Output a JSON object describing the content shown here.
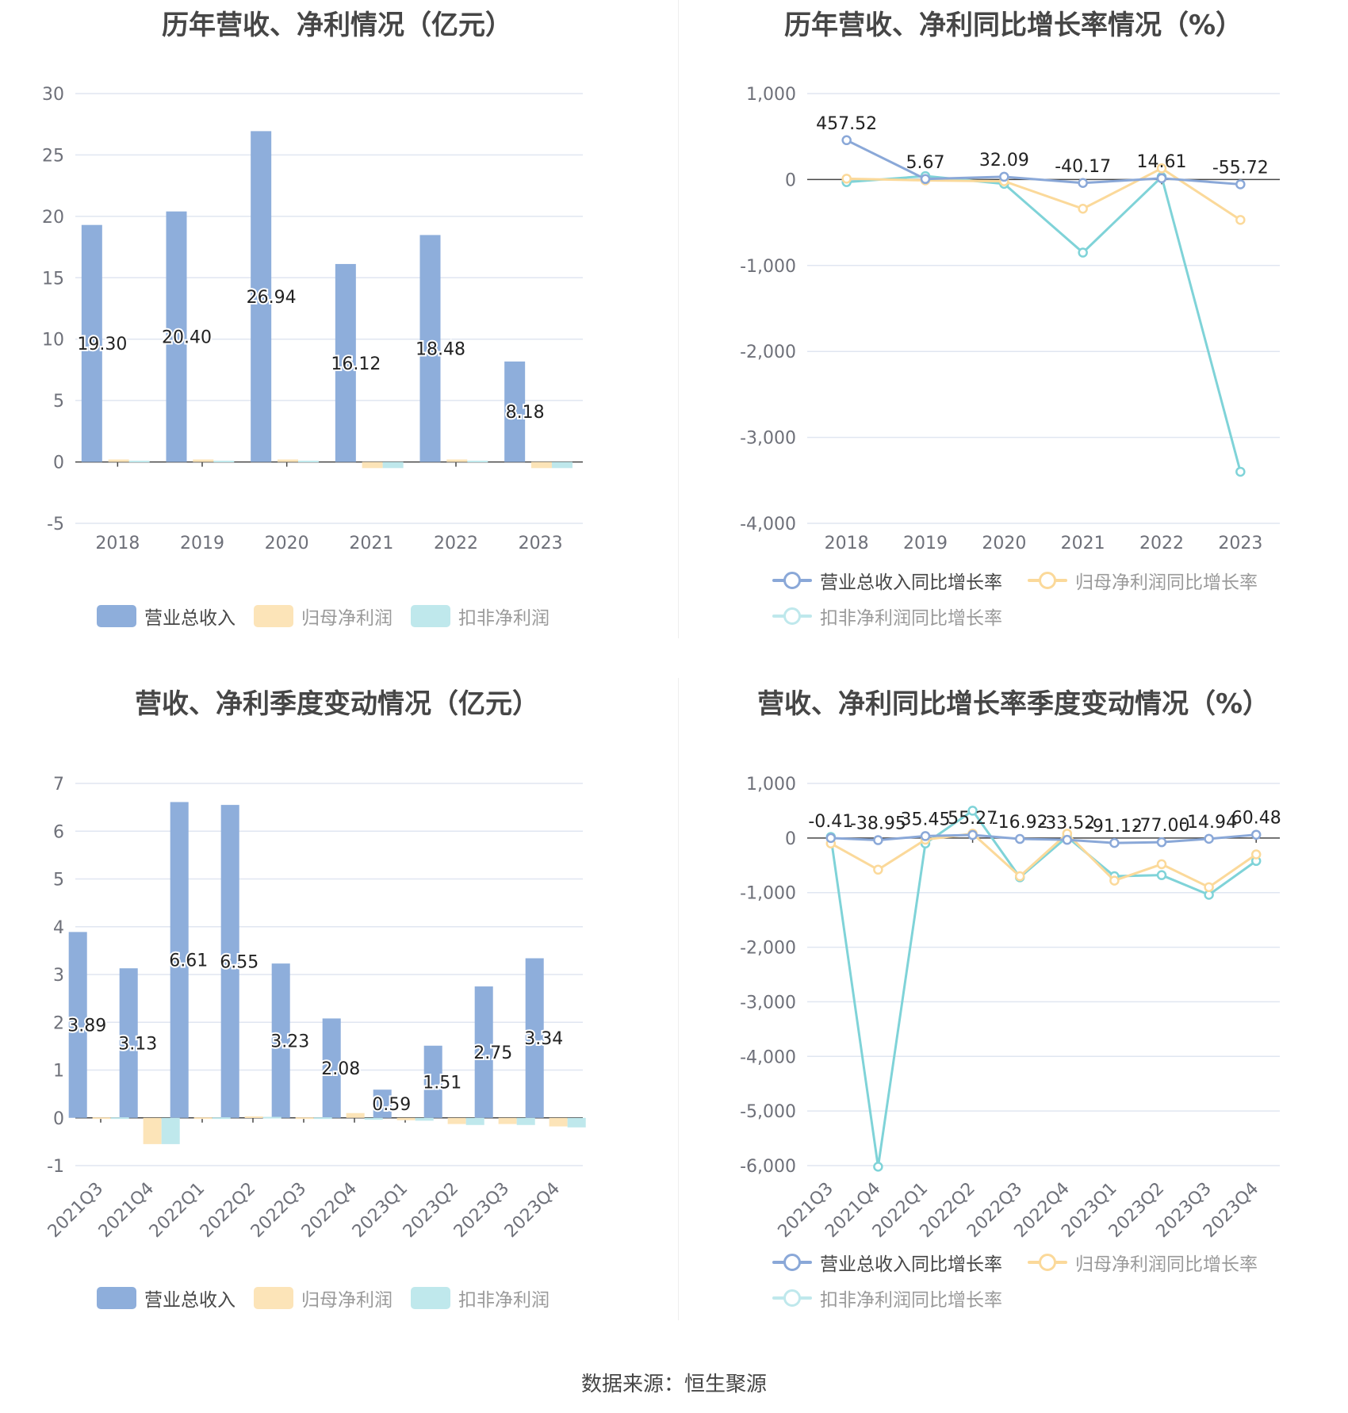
{
  "colors": {
    "revenue": "#8eaedb",
    "net_profit": "#fce4b8",
    "deducted_profit": "#bfe8ec",
    "revenue_line": "#8aa8d8",
    "net_line": "#fbd99a",
    "deducted_line": "#7fd3d8"
  },
  "source": {
    "label": "数据来源：",
    "name": "恒生聚源"
  },
  "chart_data": [
    {
      "id": "annual",
      "type": "bar",
      "title": "历年营收、净利情况（亿元）",
      "categories": [
        "2018",
        "2019",
        "2020",
        "2021",
        "2022",
        "2023"
      ],
      "ylim": [
        -5,
        30
      ],
      "yticks": [
        30,
        25,
        20,
        15,
        10,
        5,
        0,
        -5
      ],
      "ytick_labels": [
        "30",
        "25",
        "20",
        "15",
        "10",
        "5",
        "0",
        "-5"
      ],
      "grid": true,
      "legend_position": "bottom",
      "series": [
        {
          "name": "营业总收入",
          "values": [
            19.3,
            20.4,
            26.94,
            16.12,
            18.48,
            8.18
          ],
          "labels": [
            "19.30",
            "20.40",
            "26.94",
            "16.12",
            "18.48",
            "8.18"
          ]
        },
        {
          "name": "归母净利润",
          "values": [
            0.2,
            0.2,
            0.2,
            -0.5,
            0.2,
            -0.5
          ]
        },
        {
          "name": "扣非净利润",
          "values": [
            0.1,
            0.1,
            0.1,
            -0.5,
            0.1,
            -0.5
          ]
        }
      ]
    },
    {
      "id": "annual_growth",
      "type": "line",
      "title": "历年营收、净利同比增长率情况（%）",
      "categories": [
        "2018",
        "2019",
        "2020",
        "2021",
        "2022",
        "2023"
      ],
      "ylim": [
        -4000,
        1000
      ],
      "yticks": [
        1000,
        0,
        -1000,
        -2000,
        -3000,
        -4000
      ],
      "ytick_labels": [
        "1,000",
        "0",
        "-1,000",
        "-2,000",
        "-3,000",
        "-4,000"
      ],
      "grid": true,
      "legend_position": "bottom",
      "series": [
        {
          "name": "营业总收入同比增长率",
          "values": [
            457.52,
            5.67,
            32.09,
            -40.17,
            14.61,
            -55.72
          ],
          "labels": [
            "457.52",
            "5.67",
            "32.09",
            "-40.17",
            "14.61",
            "-55.72"
          ]
        },
        {
          "name": "归母净利润同比增长率",
          "values": [
            10,
            -10,
            -20,
            -340,
            130,
            -470
          ]
        },
        {
          "name": "扣非净利润同比增长率",
          "values": [
            -30,
            40,
            -50,
            -850,
            30,
            -3400
          ]
        }
      ]
    },
    {
      "id": "quarterly",
      "type": "bar",
      "title": "营收、净利季度变动情况（亿元）",
      "categories": [
        "2021Q3",
        "2021Q4",
        "2022Q1",
        "2022Q2",
        "2022Q3",
        "2022Q4",
        "2023Q1",
        "2023Q2",
        "2023Q3",
        "2023Q4"
      ],
      "ylim": [
        -1,
        7
      ],
      "yticks": [
        7,
        6,
        5,
        4,
        3,
        2,
        1,
        0,
        -1
      ],
      "ytick_labels": [
        "7",
        "6",
        "5",
        "4",
        "3",
        "2",
        "1",
        "0",
        "-1"
      ],
      "grid": true,
      "legend_position": "bottom",
      "series": [
        {
          "name": "营业总收入",
          "values": [
            3.89,
            3.13,
            6.61,
            6.55,
            3.23,
            2.08,
            0.59,
            1.51,
            2.75,
            3.34
          ],
          "labels": [
            "3.89",
            "3.13",
            "6.61",
            "6.55",
            "3.23",
            "2.08",
            "0.59",
            "1.51",
            "2.75",
            "3.34"
          ]
        },
        {
          "name": "归母净利润",
          "values": [
            0.01,
            -0.55,
            0.01,
            0.03,
            0.01,
            0.1,
            -0.05,
            -0.13,
            -0.13,
            -0.18
          ]
        },
        {
          "name": "扣非净利润",
          "values": [
            0.01,
            -0.55,
            0.01,
            0.02,
            0.01,
            -0.04,
            -0.06,
            -0.15,
            -0.15,
            -0.2
          ]
        }
      ]
    },
    {
      "id": "quarterly_growth",
      "type": "line",
      "title": "营收、净利同比增长率季度变动情况（%）",
      "categories": [
        "2021Q3",
        "2021Q4",
        "2022Q1",
        "2022Q2",
        "2022Q3",
        "2022Q4",
        "2023Q1",
        "2023Q2",
        "2023Q3",
        "2023Q4"
      ],
      "ylim": [
        -6000,
        1000
      ],
      "yticks": [
        1000,
        0,
        -1000,
        -2000,
        -3000,
        -4000,
        -5000,
        -6000
      ],
      "ytick_labels": [
        "1,000",
        "0",
        "-1,000",
        "-2,000",
        "-3,000",
        "-4,000",
        "-5,000",
        "-6,000"
      ],
      "grid": true,
      "legend_position": "bottom",
      "series": [
        {
          "name": "营业总收入同比增长率",
          "values": [
            -0.41,
            -38.95,
            35.45,
            55.27,
            -16.92,
            -33.52,
            -91.12,
            -77.0,
            -14.94,
            60.48
          ],
          "labels": [
            "-0.41",
            "-38.95",
            "35.45",
            "55.27",
            "-16.92",
            "-33.52",
            "-91.12",
            "-77.00",
            "-14.94",
            "60.48"
          ]
        },
        {
          "name": "归母净利润同比增长率",
          "values": [
            -100,
            -580,
            -30,
            80,
            -700,
            80,
            -780,
            -480,
            -900,
            -300
          ]
        },
        {
          "name": "扣非净利润同比增长率",
          "values": [
            20,
            -6020,
            -100,
            500,
            -720,
            20,
            -700,
            -680,
            -1040,
            -420
          ]
        }
      ]
    }
  ]
}
